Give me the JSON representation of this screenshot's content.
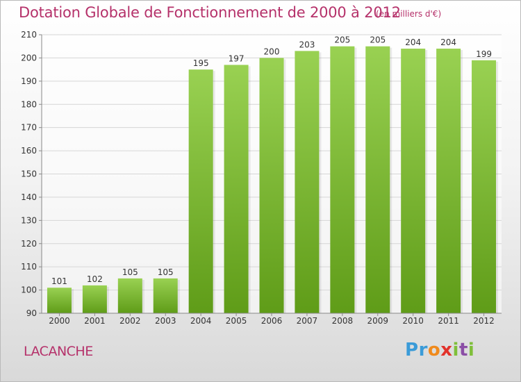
{
  "title": "Dotation Globale de Fonctionnement de 2000 à 2012",
  "subtitle": "(en milliers d'€)",
  "commune": "LACANCHE",
  "logo": {
    "letters": [
      "P",
      "r",
      "o",
      "x",
      "i",
      "t",
      "i"
    ],
    "colors": [
      "#3a9bd8",
      "#3a9bd8",
      "#f08a1c",
      "#e2322b",
      "#7fbf3a",
      "#8b4ea6",
      "#7fbf3a"
    ]
  },
  "colors": {
    "title": "#b5316a",
    "bar_top": "#99d152",
    "bar_bottom": "#5f9c18",
    "grid": "#d6d6d6",
    "axis": "#888888",
    "text": "#333333"
  },
  "chart_data": {
    "type": "bar",
    "categories": [
      "2000",
      "2001",
      "2002",
      "2003",
      "2004",
      "2005",
      "2006",
      "2007",
      "2008",
      "2009",
      "2010",
      "2011",
      "2012"
    ],
    "values": [
      101,
      102,
      105,
      105,
      195,
      197,
      200,
      203,
      205,
      205,
      204,
      204,
      199
    ],
    "yticks": [
      90,
      100,
      110,
      120,
      130,
      140,
      150,
      160,
      170,
      180,
      190,
      200,
      210
    ],
    "ylim": [
      90,
      210
    ],
    "grid": true,
    "xlabel": "",
    "ylabel": ""
  }
}
